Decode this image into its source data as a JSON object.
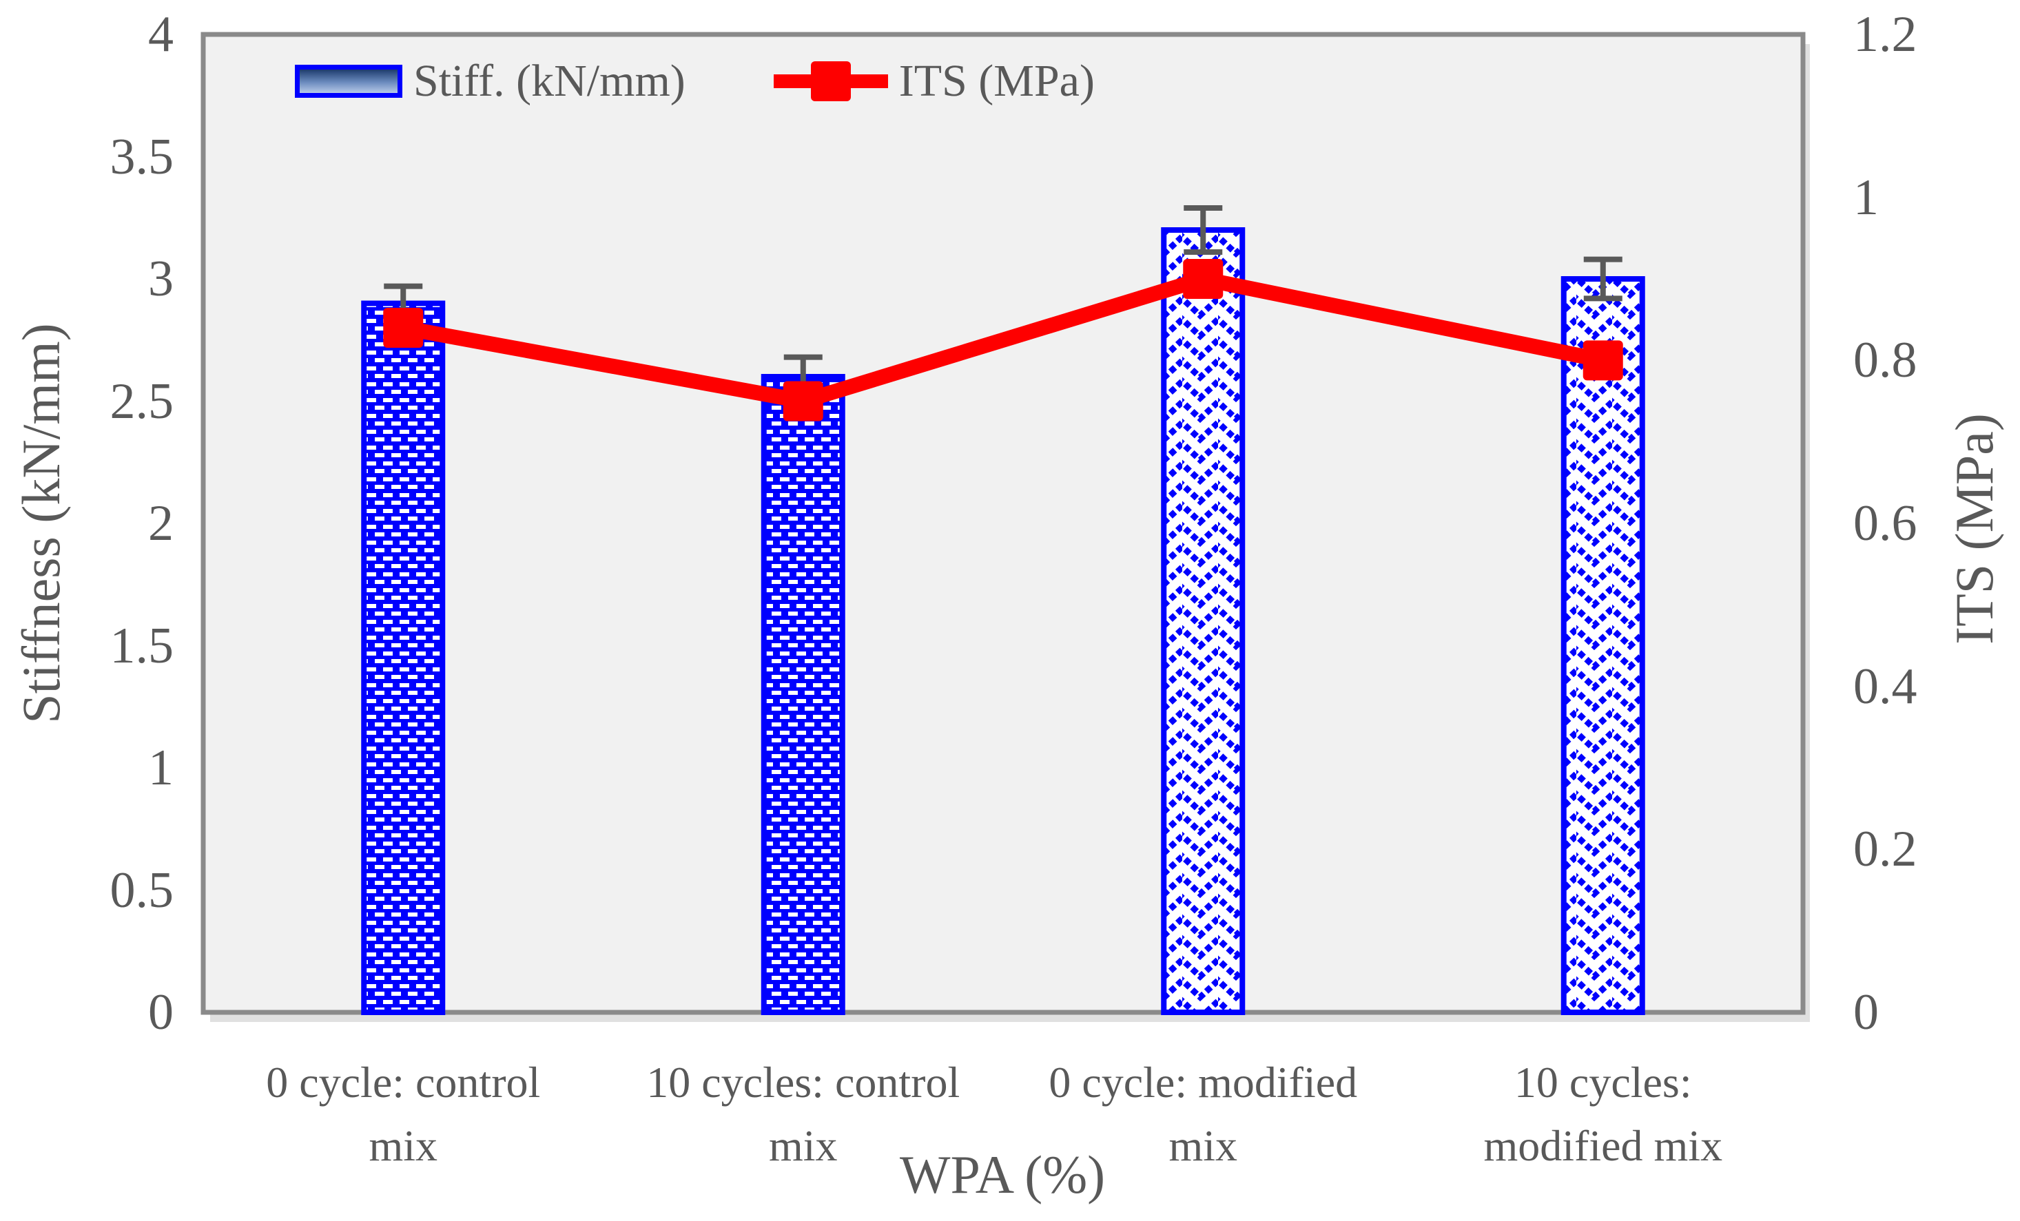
{
  "chart_data": {
    "type": "combo-bar-line",
    "title": "",
    "categories": [
      "0 cycle: control mix",
      "10 cycles: control mix",
      "0 cycle: modified mix",
      "10 cycles: modified mix"
    ],
    "category_lines": [
      [
        "0 cycle: control",
        "mix"
      ],
      [
        "10 cycles: control",
        "mix"
      ],
      [
        "0 cycle: modified",
        "mix"
      ],
      [
        "10 cycles:",
        "modified mix"
      ]
    ],
    "series": [
      {
        "name": "Stiff. (kN/mm)",
        "type": "bar",
        "axis": "left",
        "values": [
          2.9,
          2.6,
          3.2,
          3.0
        ],
        "error_bars": [
          0.07,
          0.08,
          0.09,
          0.08
        ],
        "fill_patterns": [
          "dashed-grid",
          "dashed-grid",
          "zigzag",
          "zigzag"
        ]
      },
      {
        "name": "ITS (MPa)",
        "type": "line",
        "axis": "right",
        "values": [
          0.84,
          0.75,
          0.9,
          0.8
        ],
        "marker": "square"
      }
    ],
    "left_axis": {
      "title": "Stiffness (kN/mm)",
      "min": 0,
      "max": 4,
      "step": 0.5,
      "tick_labels": [
        "4",
        "3.5",
        "3",
        "2.5",
        "2",
        "1.5",
        "1",
        "0.5",
        "0"
      ]
    },
    "right_axis": {
      "title": "ITS (MPa)",
      "min": 0,
      "max": 1.2,
      "step": 0.2,
      "tick_labels": [
        "1.2",
        "1",
        "0.8",
        "0.6",
        "0.4",
        "0.2",
        "0"
      ]
    },
    "x_axis": {
      "title": "WPA (%)"
    },
    "legend": [
      {
        "label": "Stiff. (kN/mm)",
        "swatch": "gradient-blue-bar"
      },
      {
        "label": "ITS (MPa)",
        "swatch": "red-line-square-marker"
      }
    ],
    "legend_position": "top-left-inside",
    "gridlines": false,
    "colors": {
      "bar_blue": "#0000FE",
      "line_red": "#FE0000",
      "error_bar_gray": "#595959",
      "text_gray": "#595959",
      "plot_background": "#F1F1F1",
      "plot_border": "#8A8A8A",
      "plot_shadow": "#E0E0E0",
      "page_background": "#FFFFFF",
      "pattern_white": "#FFFFFF"
    }
  }
}
